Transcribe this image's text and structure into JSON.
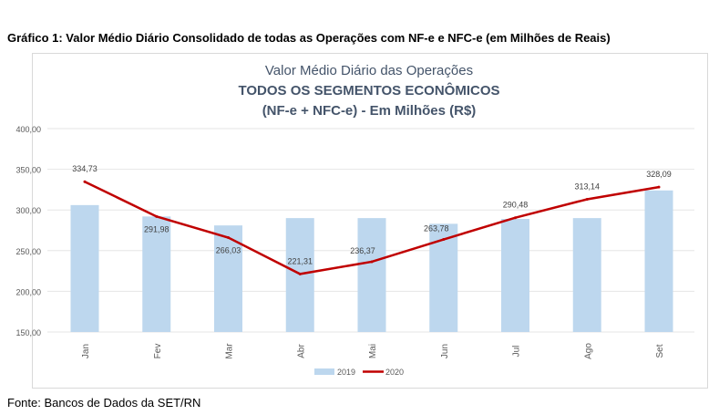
{
  "figure_title": "Gráfico 1: Valor Médio Diário Consolidado de todas as Operações com NF-e e NFC-e (em Milhões de Reais)",
  "source": "Fonte: Bancos de Dados da SET/RN",
  "chart_data": {
    "type": "bar+line",
    "title": [
      "Valor Médio Diário das Operações",
      "TODOS OS SEGMENTOS ECONÔMICOS",
      "(NF-e + NFC-e) - Em Milhões (R$)"
    ],
    "categories": [
      "Jan",
      "Fev",
      "Mar",
      "Abr",
      "Mai",
      "Jun",
      "Jul",
      "Ago",
      "Set"
    ],
    "yticks": [
      "150,00",
      "200,00",
      "250,00",
      "300,00",
      "350,00",
      "400,00"
    ],
    "ylim": [
      150,
      400
    ],
    "grid": true,
    "legend": "bottom",
    "series": [
      {
        "name": "2019",
        "type": "bar",
        "color": "#bdd7ee",
        "values": [
          306,
          292,
          281,
          290,
          290,
          283,
          289,
          290,
          324
        ]
      },
      {
        "name": "2020",
        "type": "line",
        "color": "#c00000",
        "values": [
          334.73,
          291.98,
          266.03,
          221.31,
          236.37,
          263.78,
          290.48,
          313.14,
          328.09
        ],
        "labels": [
          "334,73",
          "291,98",
          "266,03",
          "221,31",
          "236,37",
          "263,78",
          "290,48",
          "313,14",
          "328,09"
        ]
      }
    ]
  }
}
